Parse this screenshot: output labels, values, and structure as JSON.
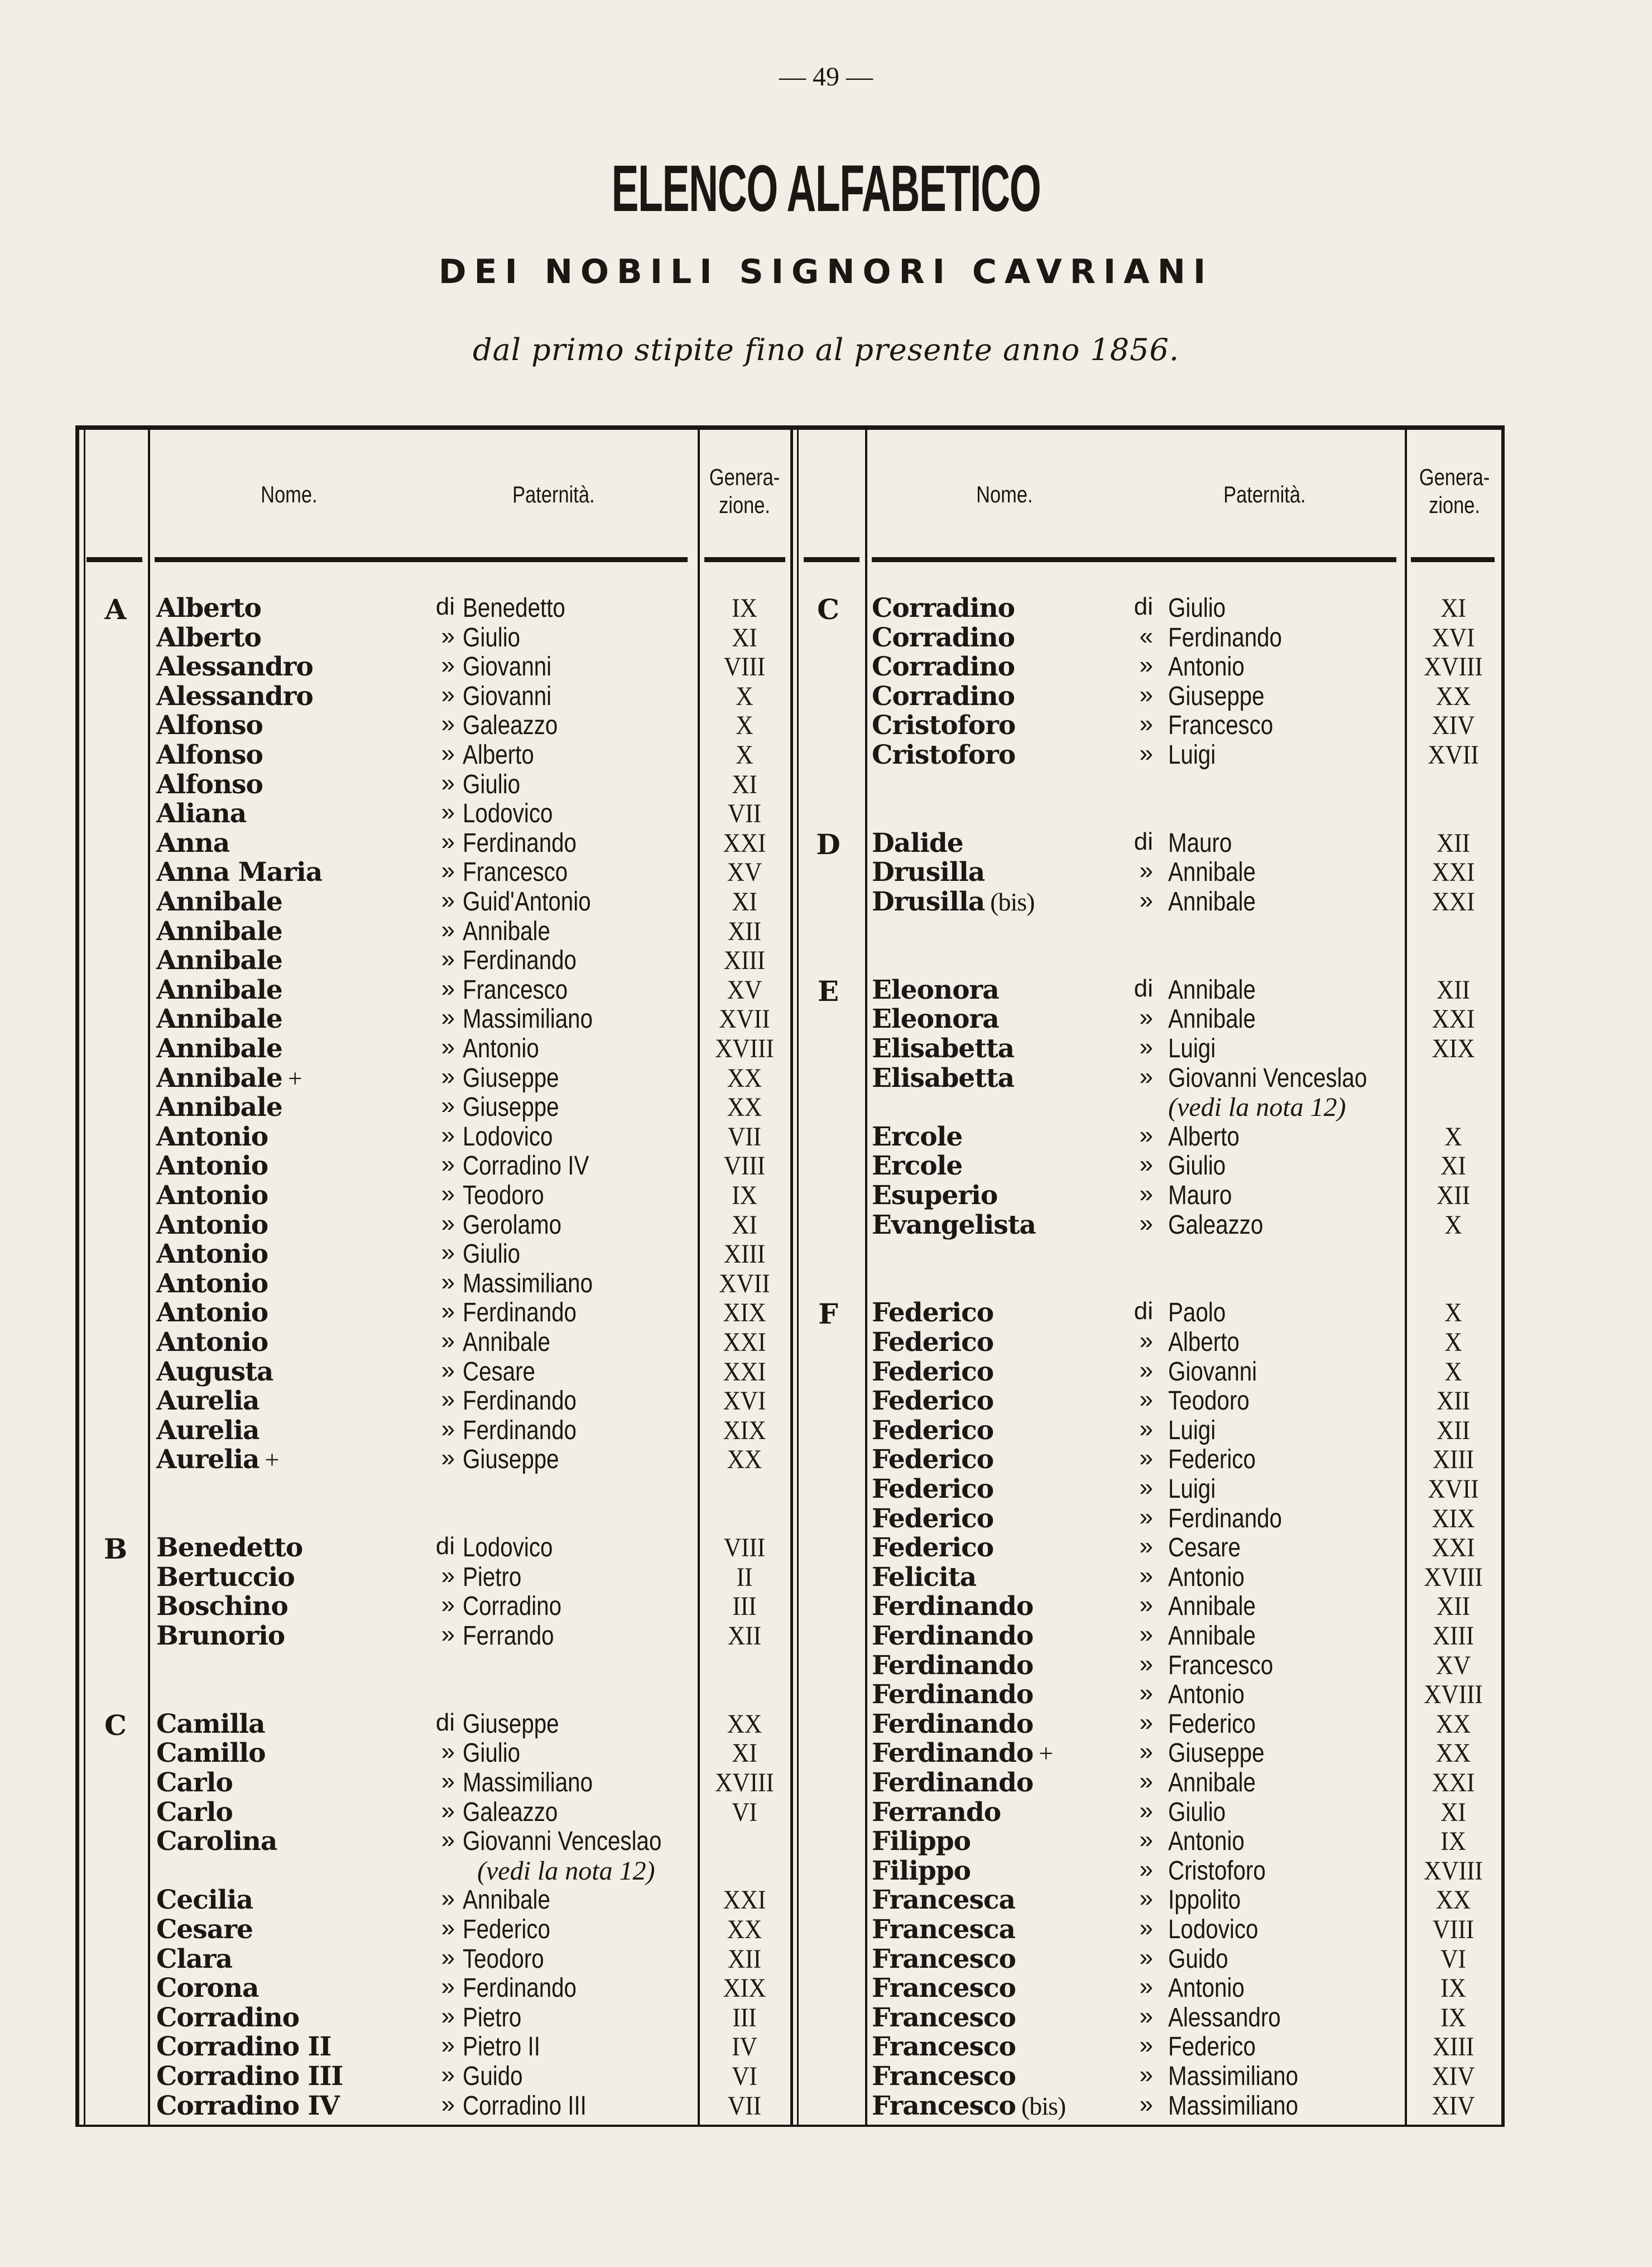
{
  "page_number": "— 49 —",
  "title": "ELENCO ALFABETICO",
  "subtitle": "DEI NOBILI SIGNORI CAVRIANI",
  "tagline": "dal primo stipite fino al presente anno 1856.",
  "headers": {
    "name": "Nome.",
    "paternity": "Paternità.",
    "generation_1": "Genera-",
    "generation_2": "zione."
  },
  "left_rows": [
    {
      "l": "A",
      "n": "Alberto",
      "p": "di",
      "f": "Benedetto",
      "g": "IX"
    },
    {
      "n": "Alberto",
      "p": "»",
      "f": "Giulio",
      "g": "XI"
    },
    {
      "n": "Alessandro",
      "p": "»",
      "f": "Giovanni",
      "g": "VIII"
    },
    {
      "n": "Alessandro",
      "p": "»",
      "f": "Giovanni",
      "g": "X"
    },
    {
      "n": "Alfonso",
      "p": "»",
      "f": "Galeazzo",
      "g": "X"
    },
    {
      "n": "Alfonso",
      "p": "»",
      "f": "Alberto",
      "g": "X"
    },
    {
      "n": "Alfonso",
      "p": "»",
      "f": "Giulio",
      "g": "XI"
    },
    {
      "n": "Aliana",
      "p": "»",
      "f": "Lodovico",
      "g": "VII"
    },
    {
      "n": "Anna",
      "p": "»",
      "f": "Ferdinando",
      "g": "XXI"
    },
    {
      "n": "Anna Maria",
      "p": "»",
      "f": "Francesco",
      "g": "XV"
    },
    {
      "n": "Annibale",
      "p": "»",
      "f": "Guid'Antonio",
      "g": "XI"
    },
    {
      "n": "Annibale",
      "p": "»",
      "f": "Annibale",
      "g": "XII"
    },
    {
      "n": "Annibale",
      "p": "»",
      "f": "Ferdinando",
      "g": "XIII"
    },
    {
      "n": "Annibale",
      "p": "»",
      "f": "Francesco",
      "g": "XV"
    },
    {
      "n": "Annibale",
      "p": "»",
      "f": "Massimiliano",
      "g": "XVII"
    },
    {
      "n": "Annibale",
      "p": "»",
      "f": "Antonio",
      "g": "XVIII"
    },
    {
      "n": "Annibale",
      "x": "+",
      "p": "»",
      "f": "Giuseppe",
      "g": "XX"
    },
    {
      "n": "Annibale",
      "p": "»",
      "f": "Giuseppe",
      "g": "XX"
    },
    {
      "n": "Antonio",
      "p": "»",
      "f": "Lodovico",
      "g": "VII"
    },
    {
      "n": "Antonio",
      "p": "»",
      "f": "Corradino IV",
      "g": "VIII"
    },
    {
      "n": "Antonio",
      "p": "»",
      "f": "Teodoro",
      "g": "IX"
    },
    {
      "n": "Antonio",
      "p": "»",
      "f": "Gerolamo",
      "g": "XI"
    },
    {
      "n": "Antonio",
      "p": "»",
      "f": "Giulio",
      "g": "XIII"
    },
    {
      "n": "Antonio",
      "p": "»",
      "f": "Massimiliano",
      "g": "XVII"
    },
    {
      "n": "Antonio",
      "p": "»",
      "f": "Ferdinando",
      "g": "XIX"
    },
    {
      "n": "Antonio",
      "p": "»",
      "f": "Annibale",
      "g": "XXI"
    },
    {
      "n": "Augusta",
      "p": "»",
      "f": "Cesare",
      "g": "XXI"
    },
    {
      "n": "Aurelia",
      "p": "»",
      "f": "Ferdinando",
      "g": "XVI"
    },
    {
      "n": "Aurelia",
      "p": "»",
      "f": "Ferdinando",
      "g": "XIX"
    },
    {
      "n": "Aurelia",
      "x": "+",
      "p": "»",
      "f": "Giuseppe",
      "g": "XX"
    },
    null,
    null,
    {
      "l": "B",
      "n": "Benedetto",
      "p": "di",
      "f": "Lodovico",
      "g": "VIII"
    },
    {
      "n": "Bertuccio",
      "p": "»",
      "f": "Pietro",
      "g": "II"
    },
    {
      "n": "Boschino",
      "p": "»",
      "f": "Corradino",
      "g": "III"
    },
    {
      "n": "Brunorio",
      "p": "»",
      "f": "Ferrando",
      "g": "XII"
    },
    null,
    null,
    {
      "l": "C",
      "n": "Camilla",
      "p": "di",
      "f": "Giuseppe",
      "g": "XX"
    },
    {
      "n": "Camillo",
      "p": "»",
      "f": "Giulio",
      "g": "XI"
    },
    {
      "n": "Carlo",
      "p": "»",
      "f": "Massimiliano",
      "g": "XVIII"
    },
    {
      "n": "Carlo",
      "p": "»",
      "f": "Galeazzo",
      "g": "VI"
    },
    {
      "n": "Carolina",
      "p": "»",
      "f": "Giovanni Venceslao"
    },
    {
      "note": "(vedi la nota 12)"
    },
    {
      "n": "Cecilia",
      "p": "»",
      "f": "Annibale",
      "g": "XXI"
    },
    {
      "n": "Cesare",
      "p": "»",
      "f": "Federico",
      "g": "XX"
    },
    {
      "n": "Clara",
      "p": "»",
      "f": "Teodoro",
      "g": "XII"
    },
    {
      "n": "Corona",
      "p": "»",
      "f": "Ferdinando",
      "g": "XIX"
    },
    {
      "n": "Corradino",
      "p": "»",
      "f": "Pietro",
      "g": "III"
    },
    {
      "n": "Corradino II",
      "p": "»",
      "f": "Pietro II",
      "g": "IV"
    },
    {
      "n": "Corradino III",
      "p": "»",
      "f": "Guido",
      "g": "VI"
    },
    {
      "n": "Corradino IV",
      "p": "»",
      "f": "Corradino III",
      "g": "VII"
    }
  ],
  "right_rows": [
    {
      "l": "C",
      "n": "Corradino",
      "p": "di",
      "f": "Giulio",
      "g": "XI"
    },
    {
      "n": "Corradino",
      "p": "«",
      "f": "Ferdinando",
      "g": "XVI"
    },
    {
      "n": "Corradino",
      "p": "»",
      "f": "Antonio",
      "g": "XVIII"
    },
    {
      "n": "Corradino",
      "p": "»",
      "f": "Giuseppe",
      "g": "XX"
    },
    {
      "n": "Cristoforo",
      "p": "»",
      "f": "Francesco",
      "g": "XIV"
    },
    {
      "n": "Cristoforo",
      "p": "»",
      "f": "Luigi",
      "g": "XVII"
    },
    null,
    null,
    {
      "l": "D",
      "n": "Dalide",
      "p": "di",
      "f": "Mauro",
      "g": "XII"
    },
    {
      "n": "Drusilla",
      "p": "»",
      "f": "Annibale",
      "g": "XXI"
    },
    {
      "n": "Drusilla",
      "x": "(bis)",
      "p": "»",
      "f": "Annibale",
      "g": "XXI"
    },
    null,
    null,
    {
      "l": "E",
      "n": "Eleonora",
      "p": "di",
      "f": "Annibale",
      "g": "XII"
    },
    {
      "n": "Eleonora",
      "p": "»",
      "f": "Annibale",
      "g": "XXI"
    },
    {
      "n": "Elisabetta",
      "p": "»",
      "f": "Luigi",
      "g": "XIX"
    },
    {
      "n": "Elisabetta",
      "p": "»",
      "f": "Giovanni Venceslao"
    },
    {
      "note": "(vedi la nota 12)"
    },
    {
      "n": "Ercole",
      "p": "»",
      "f": "Alberto",
      "g": "X"
    },
    {
      "n": "Ercole",
      "p": "»",
      "f": "Giulio",
      "g": "XI"
    },
    {
      "n": "Esuperio",
      "p": "»",
      "f": "Mauro",
      "g": "XII"
    },
    {
      "n": "Evangelista",
      "p": "»",
      "f": "Galeazzo",
      "g": "X"
    },
    null,
    null,
    {
      "l": "F",
      "n": "Federico",
      "p": "di",
      "f": "Paolo",
      "g": "X"
    },
    {
      "n": "Federico",
      "p": "»",
      "f": "Alberto",
      "g": "X"
    },
    {
      "n": "Federico",
      "p": "»",
      "f": "Giovanni",
      "g": "X"
    },
    {
      "n": "Federico",
      "p": "»",
      "f": "Teodoro",
      "g": "XII"
    },
    {
      "n": "Federico",
      "p": "»",
      "f": "Luigi",
      "g": "XII"
    },
    {
      "n": "Federico",
      "p": "»",
      "f": "Federico",
      "g": "XIII"
    },
    {
      "n": "Federico",
      "p": "»",
      "f": "Luigi",
      "g": "XVII"
    },
    {
      "n": "Federico",
      "p": "»",
      "f": "Ferdinando",
      "g": "XIX"
    },
    {
      "n": "Federico",
      "p": "»",
      "f": "Cesare",
      "g": "XXI"
    },
    {
      "n": "Felicita",
      "p": "»",
      "f": "Antonio",
      "g": "XVIII"
    },
    {
      "n": "Ferdinando",
      "p": "»",
      "f": "Annibale",
      "g": "XII"
    },
    {
      "n": "Ferdinando",
      "p": "»",
      "f": "Annibale",
      "g": "XIII"
    },
    {
      "n": "Ferdinando",
      "p": "»",
      "f": "Francesco",
      "g": "XV"
    },
    {
      "n": "Ferdinando",
      "p": "»",
      "f": "Antonio",
      "g": "XVIII"
    },
    {
      "n": "Ferdinando",
      "p": "»",
      "f": "Federico",
      "g": "XX"
    },
    {
      "n": "Ferdinando",
      "x": "+",
      "p": "»",
      "f": "Giuseppe",
      "g": "XX"
    },
    {
      "n": "Ferdinando",
      "p": "»",
      "f": "Annibale",
      "g": "XXI"
    },
    {
      "n": "Ferrando",
      "p": "»",
      "f": "Giulio",
      "g": "XI"
    },
    {
      "n": "Filippo",
      "p": "»",
      "f": "Antonio",
      "g": "IX"
    },
    {
      "n": "Filippo",
      "p": "»",
      "f": "Cristoforo",
      "g": "XVIII"
    },
    {
      "n": "Francesca",
      "p": "»",
      "f": "Ippolito",
      "g": "XX"
    },
    {
      "n": "Francesca",
      "p": "»",
      "f": "Lodovico",
      "g": "VIII"
    },
    {
      "n": "Francesco",
      "p": "»",
      "f": "Guido",
      "g": "VI"
    },
    {
      "n": "Francesco",
      "p": "»",
      "f": "Antonio",
      "g": "IX"
    },
    {
      "n": "Francesco",
      "p": "»",
      "f": "Alessandro",
      "g": "IX"
    },
    {
      "n": "Francesco",
      "p": "»",
      "f": "Federico",
      "g": "XIII"
    },
    {
      "n": "Francesco",
      "p": "»",
      "f": "Massimiliano",
      "g": "XIV"
    },
    {
      "n": "Francesco",
      "x": "(bis)",
      "p": "»",
      "f": "Massimiliano",
      "g": "XIV"
    }
  ]
}
